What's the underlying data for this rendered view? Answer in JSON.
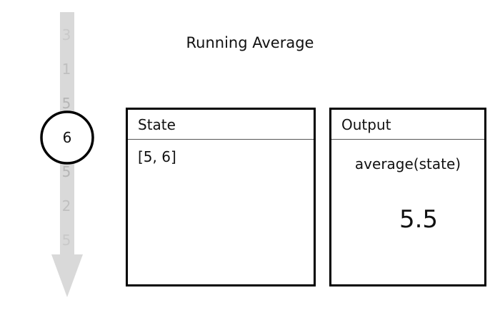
{
  "title": "Running Average",
  "stream": {
    "items": [
      "3",
      "1",
      "5",
      "6",
      "5",
      "2",
      "5"
    ],
    "current_index": 3
  },
  "state_panel": {
    "header": "State",
    "value": "[5, 6]"
  },
  "output_panel": {
    "header": "Output",
    "formula": "average(state)",
    "value": "5.5"
  },
  "colors": {
    "arrow": "#d9d9d9",
    "faded_number": "#c0c0c0",
    "border": "#000000"
  }
}
